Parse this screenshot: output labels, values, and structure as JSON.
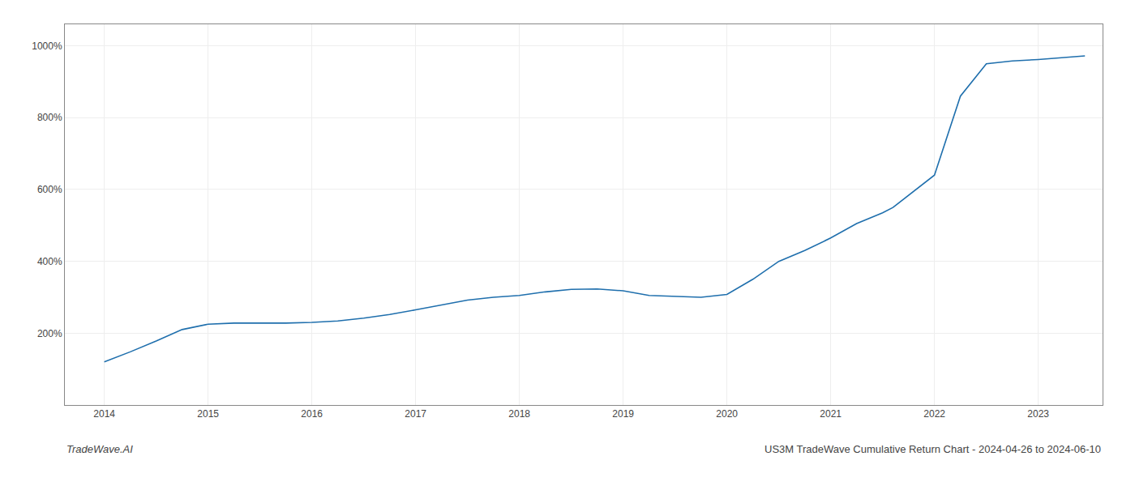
{
  "chart_data": {
    "type": "line",
    "title": "US3M TradeWave Cumulative Return Chart - 2024-04-26 to 2024-06-10",
    "annotations": [
      "TradeWave.AI"
    ],
    "x": [
      2014.0,
      2014.25,
      2014.5,
      2014.75,
      2015.0,
      2015.25,
      2015.5,
      2015.75,
      2016.0,
      2016.25,
      2016.5,
      2016.75,
      2017.0,
      2017.25,
      2017.5,
      2017.75,
      2018.0,
      2018.25,
      2018.5,
      2018.75,
      2019.0,
      2019.25,
      2019.5,
      2019.75,
      2020.0,
      2020.25,
      2020.5,
      2020.75,
      2021.0,
      2021.25,
      2021.5,
      2021.6,
      2022.0,
      2022.25,
      2022.5,
      2022.75,
      2023.0,
      2023.25,
      2023.45
    ],
    "values": [
      120,
      148,
      178,
      210,
      225,
      228,
      228,
      228,
      230,
      234,
      242,
      252,
      265,
      278,
      292,
      300,
      305,
      315,
      322,
      323,
      318,
      305,
      302,
      300,
      308,
      350,
      400,
      430,
      465,
      505,
      535,
      550,
      640,
      860,
      950,
      958,
      962,
      968,
      972
    ],
    "color": "#1f6fad",
    "xlim": [
      2013.62,
      2023.62
    ],
    "xticks": [
      2014,
      2015,
      2016,
      2017,
      2018,
      2019,
      2020,
      2021,
      2022,
      2023
    ],
    "ylim": [
      0,
      1060
    ],
    "yticks": [
      {
        "value": 200,
        "label": "200%"
      },
      {
        "value": 400,
        "label": "400%"
      },
      {
        "value": 600,
        "label": "600%"
      },
      {
        "value": 800,
        "label": "800%"
      },
      {
        "value": 1000,
        "label": "1000%"
      }
    ],
    "grid": true
  }
}
